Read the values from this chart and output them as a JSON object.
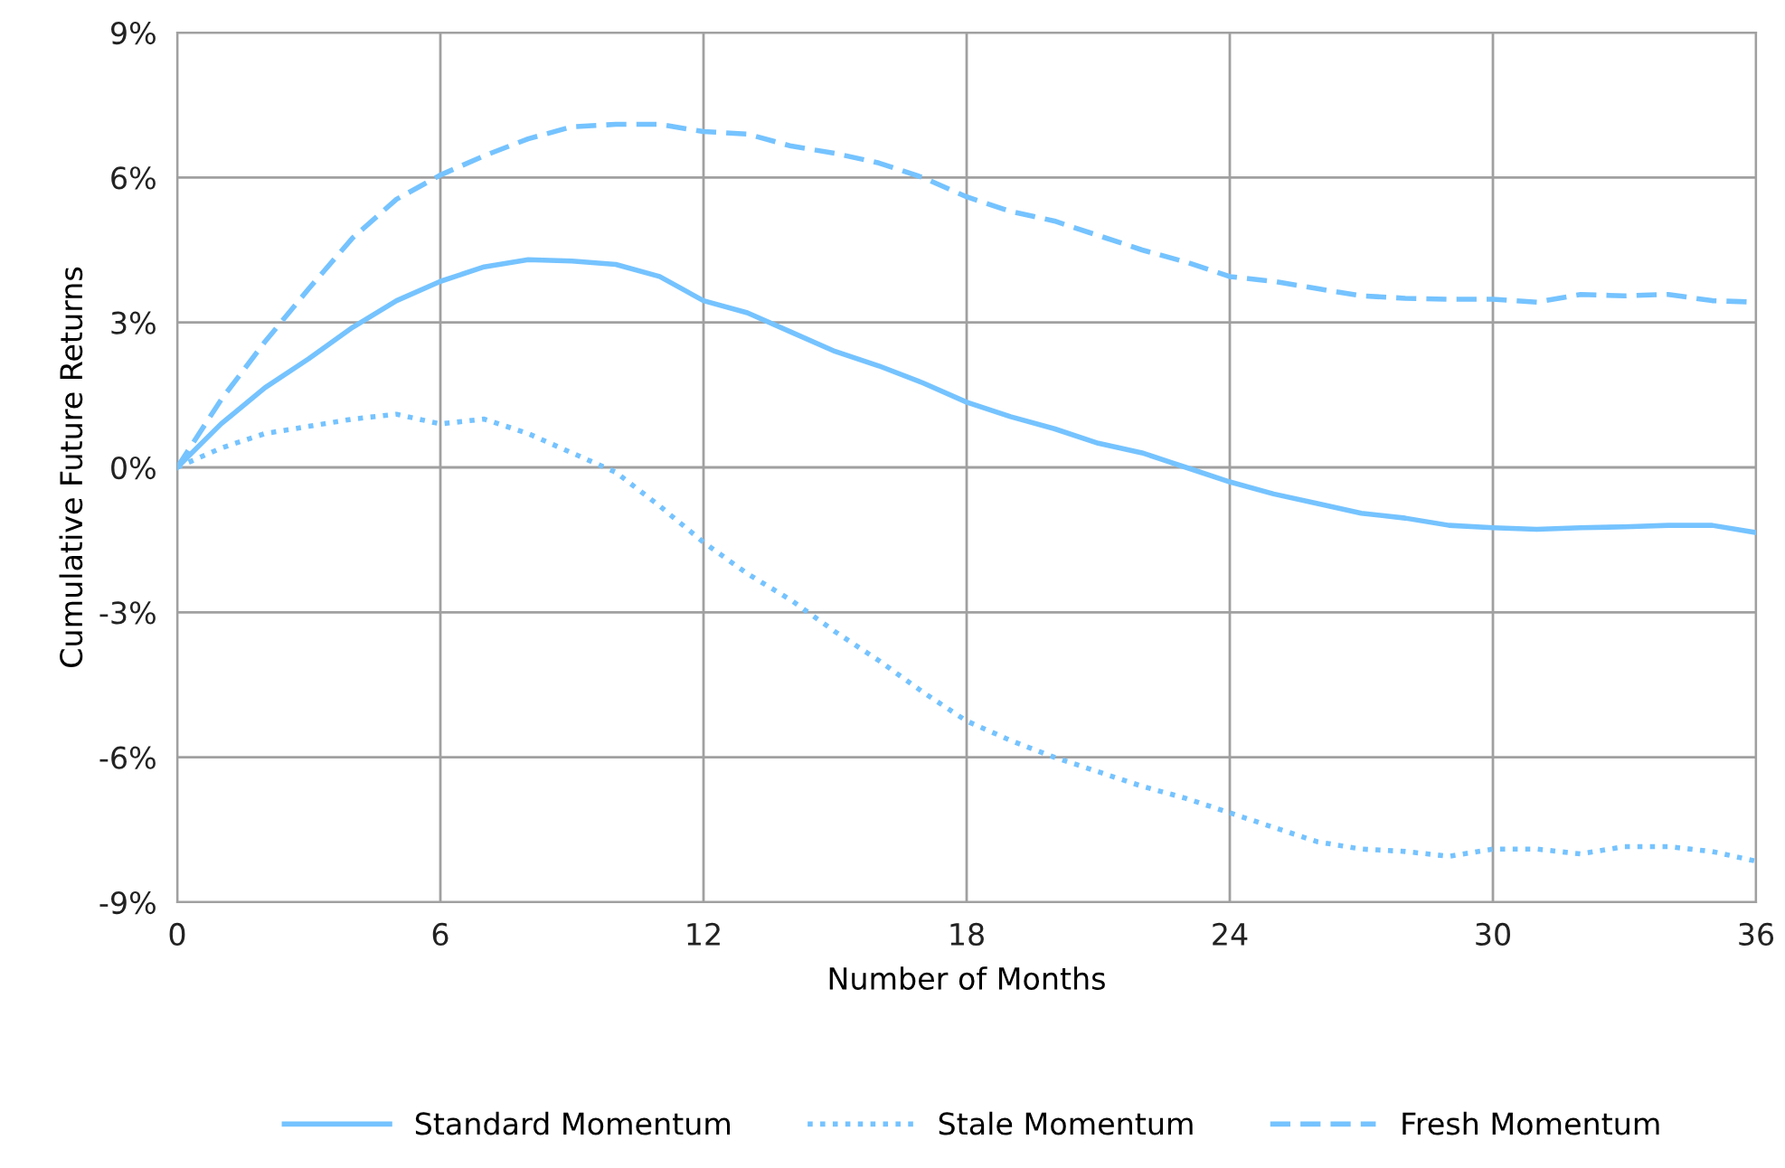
{
  "chart_data": {
    "type": "line",
    "xlabel": "Number of Months",
    "ylabel": "Cumulative Future Returns",
    "x": [
      0,
      1,
      2,
      3,
      4,
      5,
      6,
      7,
      8,
      9,
      10,
      11,
      12,
      13,
      14,
      15,
      16,
      17,
      18,
      19,
      20,
      21,
      22,
      23,
      24,
      25,
      26,
      27,
      28,
      29,
      30,
      31,
      32,
      33,
      34,
      35,
      36
    ],
    "series": [
      {
        "name": "Standard Momentum",
        "color": "#75c3ff",
        "line_style": "solid",
        "values": [
          0,
          0.9,
          1.65,
          2.25,
          2.9,
          3.45,
          3.85,
          4.15,
          4.3,
          4.27,
          4.2,
          3.95,
          3.45,
          3.2,
          2.8,
          2.4,
          2.1,
          1.75,
          1.35,
          1.05,
          0.8,
          0.5,
          0.3,
          0.0,
          -0.3,
          -0.55,
          -0.75,
          -0.95,
          -1.05,
          -1.2,
          -1.25,
          -1.28,
          -1.25,
          -1.23,
          -1.2,
          -1.2,
          -1.35
        ]
      },
      {
        "name": "Stale Momentum",
        "color": "#75c3ff",
        "line_style": "dotted",
        "values": [
          0,
          0.4,
          0.7,
          0.85,
          1.0,
          1.1,
          0.9,
          1.0,
          0.7,
          0.3,
          -0.1,
          -0.8,
          -1.55,
          -2.2,
          -2.75,
          -3.4,
          -4.0,
          -4.65,
          -5.25,
          -5.65,
          -6.0,
          -6.3,
          -6.6,
          -6.85,
          -7.15,
          -7.45,
          -7.75,
          -7.9,
          -7.95,
          -8.05,
          -7.9,
          -7.9,
          -8.0,
          -7.85,
          -7.85,
          -7.95,
          -8.15
        ]
      },
      {
        "name": "Fresh Momentum",
        "color": "#75c3ff",
        "line_style": "dashed",
        "values": [
          0,
          1.4,
          2.6,
          3.7,
          4.75,
          5.55,
          6.05,
          6.45,
          6.8,
          7.05,
          7.1,
          7.1,
          6.95,
          6.9,
          6.65,
          6.5,
          6.3,
          6.0,
          5.6,
          5.3,
          5.1,
          4.8,
          4.5,
          4.25,
          3.95,
          3.85,
          3.7,
          3.55,
          3.5,
          3.48,
          3.48,
          3.42,
          3.58,
          3.55,
          3.58,
          3.45,
          3.42
        ]
      }
    ],
    "xlim": [
      0,
      36
    ],
    "xticks": [
      0,
      6,
      12,
      18,
      24,
      30,
      36
    ],
    "ylim": [
      -9,
      9
    ],
    "yticks": [
      {
        "value": -9,
        "label": "-9%"
      },
      {
        "value": -6,
        "label": "-6%"
      },
      {
        "value": -3,
        "label": "-3%"
      },
      {
        "value": 0,
        "label": "0%"
      },
      {
        "value": 3,
        "label": "3%"
      },
      {
        "value": 6,
        "label": "6%"
      },
      {
        "value": 9,
        "label": "9%"
      }
    ],
    "grid": true,
    "legend": "bottom",
    "marker": "none"
  }
}
